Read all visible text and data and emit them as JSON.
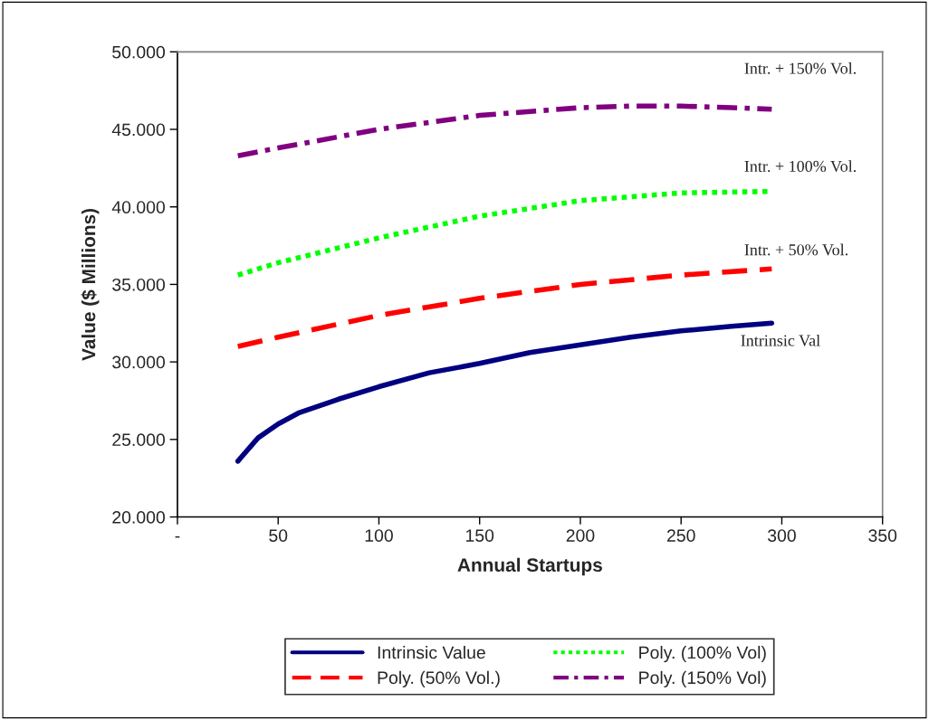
{
  "chart_data": {
    "type": "line",
    "xlabel": "Annual Startups",
    "ylabel": "Value ($ Millions)",
    "xlim": [
      0,
      350
    ],
    "xticks": [
      {
        "value": 0,
        "label": "-"
      },
      50,
      100,
      150,
      200,
      250,
      300,
      350
    ],
    "ylim": [
      20000,
      50000
    ],
    "yticks": [
      {
        "value": 20000,
        "label": "20.000"
      },
      {
        "value": 25000,
        "label": "25.000"
      },
      {
        "value": 30000,
        "label": "30.000"
      },
      {
        "value": 35000,
        "label": "35.000"
      },
      {
        "value": 40000,
        "label": "40.000"
      },
      {
        "value": 45000,
        "label": "45.000"
      },
      {
        "value": 50000,
        "label": "50.000"
      }
    ],
    "grid": false,
    "legend": "bottom",
    "series": [
      {
        "name": "Intrinsic Value",
        "color": "#000080",
        "line_style": "solid",
        "x": [
          30,
          40,
          50,
          60,
          80,
          100,
          125,
          150,
          175,
          200,
          225,
          250,
          275,
          295
        ],
        "values": [
          23600,
          25100,
          26000,
          26700,
          27600,
          28400,
          29300,
          29900,
          30600,
          31100,
          31600,
          32000,
          32300,
          32500
        ]
      },
      {
        "name": "Poly. (50% Vol.)",
        "color": "#ff0000",
        "line_style": "dashed",
        "x": [
          30,
          50,
          100,
          150,
          200,
          250,
          295
        ],
        "values": [
          31000,
          31600,
          33000,
          34100,
          35000,
          35600,
          36000
        ]
      },
      {
        "name": "Poly. (100% Vol)",
        "color": "#00ff00",
        "line_style": "dotted",
        "x": [
          30,
          50,
          100,
          150,
          200,
          250,
          295
        ],
        "values": [
          35600,
          36400,
          38000,
          39400,
          40400,
          40900,
          41000
        ]
      },
      {
        "name": "Poly. (150% Vol)",
        "color": "#800080",
        "line_style": "dashdot",
        "x": [
          30,
          50,
          100,
          150,
          200,
          225,
          250,
          275,
          295
        ],
        "values": [
          43300,
          43800,
          45000,
          45900,
          46400,
          46500,
          46500,
          46400,
          46300
        ]
      }
    ],
    "annotations": [
      "Intr. + 150% Vol.",
      "Intr. + 100% Vol.",
      "Intr. + 50% Vol.",
      "Intrinsic Val"
    ]
  }
}
